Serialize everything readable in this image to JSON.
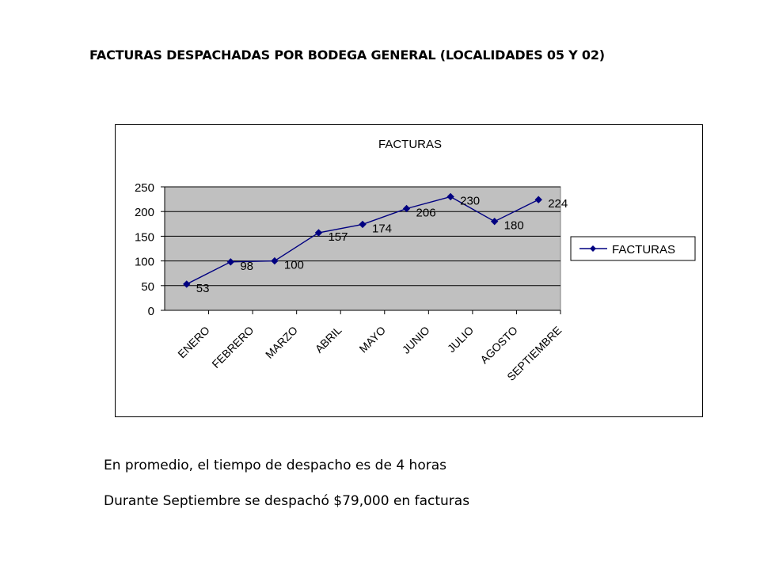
{
  "page_title": "FACTURAS DESPACHADAS POR BODEGA GENERAL (LOCALIDADES 05 Y 02)",
  "notes": [
    "En promedio, el tiempo de despacho es de 4 horas",
    "Durante Septiembre se despachó $79,000 en facturas"
  ],
  "chart_data": {
    "type": "line",
    "title": "FACTURAS",
    "categories": [
      "ENERO",
      "FEBRERO",
      "MARZO",
      "ABRIL",
      "MAYO",
      "JUNIO",
      "JULIO",
      "AGOSTO",
      "SEPTIEMBRE"
    ],
    "series": [
      {
        "name": "FACTURAS",
        "values": [
          53,
          98,
          100,
          157,
          174,
          206,
          230,
          180,
          224
        ]
      }
    ],
    "data_labels": [
      "53",
      "98",
      "100",
      "157",
      "174",
      "206",
      "230",
      "180",
      "224"
    ],
    "ylim": [
      0,
      250
    ],
    "yticks": [
      "0",
      "50",
      "100",
      "150",
      "200",
      "250"
    ],
    "grid": true,
    "legend_position": "right",
    "colors": {
      "series": "#000080",
      "plot_background": "#c0c0c0",
      "gridline": "#000000"
    }
  }
}
